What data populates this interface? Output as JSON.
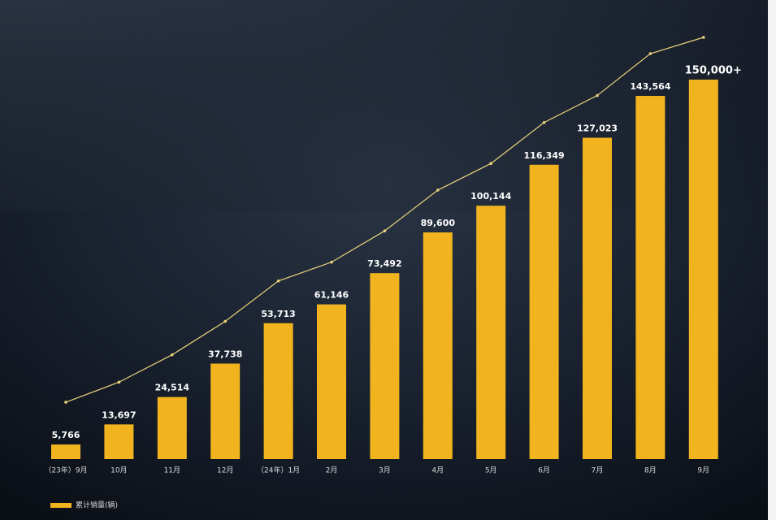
{
  "chart_data": {
    "type": "bar",
    "categories": [
      "（23年）9月",
      "10月",
      "11月",
      "12月",
      "（24年）1月",
      "2月",
      "3月",
      "4月",
      "5月",
      "6月",
      "7月",
      "8月",
      "9月"
    ],
    "series": [
      {
        "name": "累计销量(辆)",
        "color": "#f2b41e",
        "values": [
          5766,
          13697,
          24514,
          37738,
          53713,
          61146,
          73492,
          89600,
          100144,
          116349,
          127023,
          143564,
          150000
        ],
        "value_labels": [
          "5,766",
          "13,697",
          "24,514",
          "37,738",
          "53,713",
          "61,146",
          "73,492",
          "89,600",
          "100,144",
          "116,349",
          "127,023",
          "143,564",
          "150,000+"
        ]
      }
    ],
    "trend_line_color": "#e9d27c",
    "legend": "bottom-left"
  }
}
